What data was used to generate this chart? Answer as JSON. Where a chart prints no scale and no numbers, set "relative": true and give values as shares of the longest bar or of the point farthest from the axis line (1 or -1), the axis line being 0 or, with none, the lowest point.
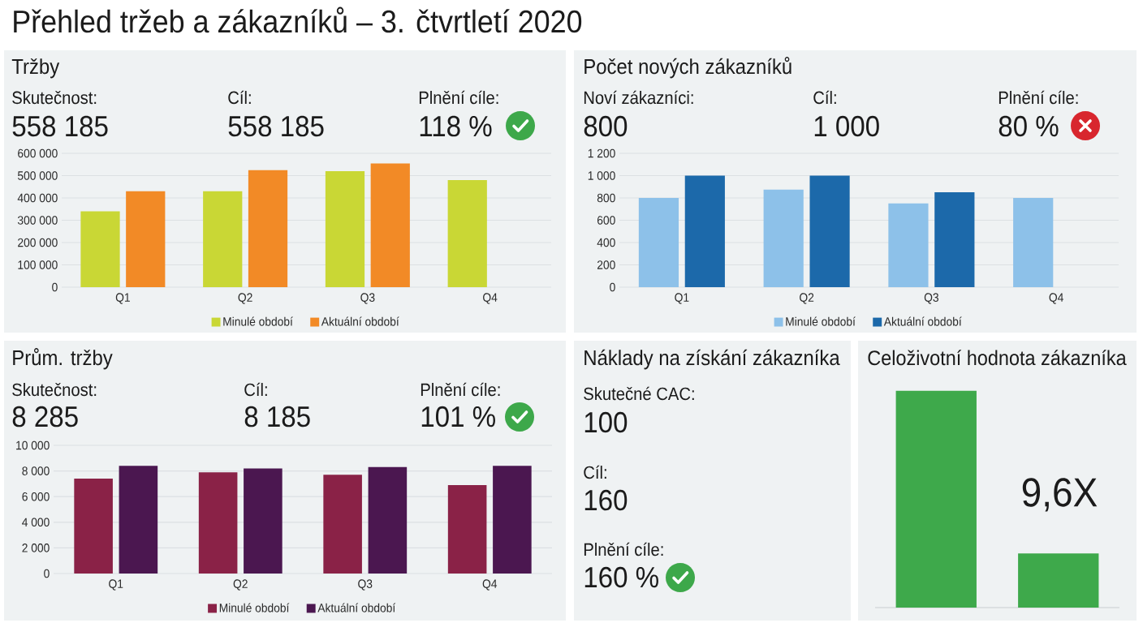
{
  "chart_data": [
    {
      "type": "other",
      "title": "Přehled tržeb a zákazníků – 3. čtvrtletí 2020"
    },
    {
      "type": "bar",
      "title": "Tržby",
      "annotations": [
        "Skutečnost:",
        "558 185",
        "Cíl:",
        "558 185",
        "Plnění cíle:",
        "118 %"
      ],
      "categories": [
        "Q1",
        "Q2",
        "Q3",
        "Q4"
      ],
      "series": [
        {
          "name": "Minulé období",
          "color": "#c9d735",
          "values": [
            340000,
            430000,
            520000,
            480000
          ]
        },
        {
          "name": "Aktuální období",
          "color": "#f28a26",
          "values": [
            430000,
            525000,
            555000,
            null
          ]
        }
      ],
      "ylim": [
        0,
        600000
      ],
      "yticks": [
        0,
        {
          "value": 100000,
          "label": "100 000"
        },
        {
          "value": 200000,
          "label": "200 000"
        },
        {
          "value": 300000,
          "label": "300 000"
        },
        {
          "value": 400000,
          "label": "400 000"
        },
        {
          "value": 500000,
          "label": "500 000"
        },
        {
          "value": 600000,
          "label": "600 000"
        }
      ],
      "grid": "y",
      "legend": "bottom"
    },
    {
      "type": "bar",
      "title": "Počet nových zákazníků",
      "annotations": [
        "Noví zákazníci:",
        "800",
        "Cíl:",
        "1 000",
        "Plnění cíle:",
        "80 %"
      ],
      "categories": [
        "Q1",
        "Q2",
        "Q3",
        "Q4"
      ],
      "series": [
        {
          "name": "Minulé období",
          "color": "#8dc1e9",
          "values": [
            800,
            875,
            750,
            800
          ]
        },
        {
          "name": "Aktuální období",
          "color": "#1c69aa",
          "values": [
            1000,
            1000,
            850,
            null
          ]
        }
      ],
      "ylim": [
        0,
        1200
      ],
      "yticks": [
        0,
        200,
        400,
        600,
        800,
        {
          "value": 1000,
          "label": "1 000"
        },
        {
          "value": 1200,
          "label": "1 200"
        }
      ],
      "grid": "y",
      "legend": "bottom"
    },
    {
      "type": "bar",
      "title": "Prům. tržby",
      "annotations": [
        "Skutečnost:",
        "8 285",
        "Cíl:",
        "8 185",
        "Plnění cíle:",
        "101 %"
      ],
      "categories": [
        "Q1",
        "Q2",
        "Q3",
        "Q4"
      ],
      "series": [
        {
          "name": "Minulé období",
          "color": "#8a2247",
          "values": [
            7400,
            7900,
            7700,
            6900
          ]
        },
        {
          "name": "Aktuální období",
          "color": "#4b1750",
          "values": [
            8400,
            8200,
            8300,
            8400
          ]
        }
      ],
      "ylim": [
        0,
        10000
      ],
      "yticks": [
        0,
        {
          "value": 2000,
          "label": "2 000"
        },
        {
          "value": 4000,
          "label": "4 000"
        },
        {
          "value": 6000,
          "label": "6 000"
        },
        {
          "value": 8000,
          "label": "8 000"
        },
        {
          "value": 10000,
          "label": "10 000"
        }
      ],
      "grid": "y",
      "legend": "bottom"
    },
    {
      "type": "other",
      "title": "Náklady na získání zákazníka",
      "annotations": [
        "Skutečné CAC:",
        "100",
        "Cíl:",
        "160",
        "Plnění cíle:",
        "160 %"
      ]
    },
    {
      "type": "bar",
      "title": "Celoživotní hodnota zákazníka",
      "annotations": [
        "9,6X"
      ],
      "categories": [
        null,
        null
      ],
      "values": [
        1,
        0.25
      ],
      "color": "#3ea94b",
      "relative": true
    }
  ]
}
